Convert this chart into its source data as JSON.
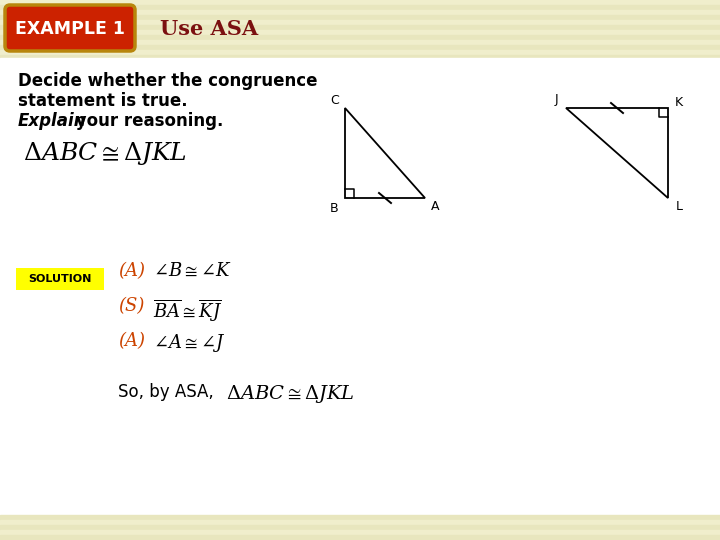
{
  "background_color": "#faf9e8",
  "header_bg_light": "#f0eecc",
  "header_bg_dark": "#e8e6be",
  "title_bar_bg": "#cc2200",
  "title_bar_border": "#b8860b",
  "title_bar_text": "EXAMPLE 1",
  "title_bar_text_color": "#ffffff",
  "header_subtitle": "Use ASA",
  "header_subtitle_color": "#7b1010",
  "body_bg": "#ffffff",
  "solution_bg": "#ffff00",
  "solution_text": "SOLUTION",
  "solution_text_color": "#000000",
  "dark_red": "#cc4400",
  "black": "#000000",
  "fig_width": 7.2,
  "fig_height": 5.4,
  "dpi": 100
}
